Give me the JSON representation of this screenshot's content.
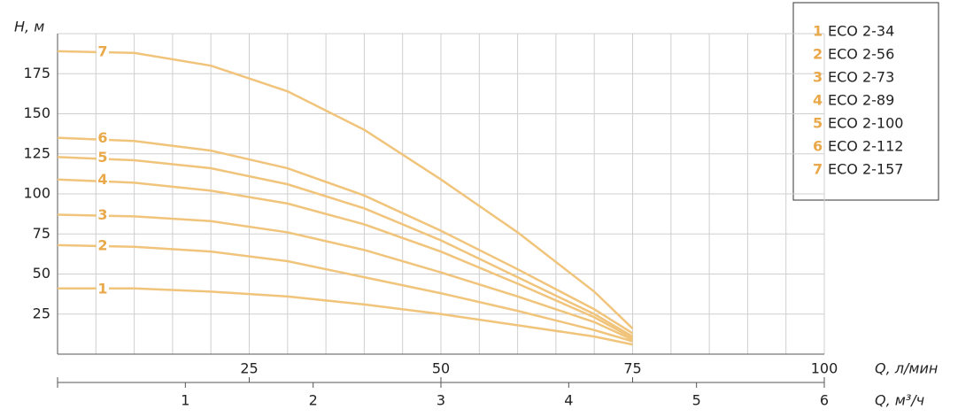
{
  "chart_data": {
    "type": "line",
    "y_label": "H, м",
    "x_label": "Q, л/мин",
    "x2_label": "Q, м³/ч",
    "x": [
      0,
      10,
      20,
      30,
      40,
      50,
      60,
      70,
      75
    ],
    "xlim": [
      0,
      100
    ],
    "xticks": [
      25,
      50,
      75,
      100
    ],
    "xgrid": [
      5,
      10,
      15,
      20,
      25,
      30,
      35,
      40,
      45,
      50,
      55,
      60,
      65,
      70,
      75,
      80,
      85,
      90,
      95,
      100
    ],
    "x2lim": [
      0,
      6
    ],
    "x2ticks": [
      1,
      2,
      3,
      4,
      5,
      6
    ],
    "ylim": [
      0,
      200
    ],
    "yticks": [
      25,
      50,
      75,
      100,
      125,
      150,
      175
    ],
    "grid": true,
    "legend": "top-right",
    "label_color": "#e9a94b",
    "series": [
      {
        "label": "1",
        "name": "ECO 2-34",
        "color": "#f1c47c",
        "values": [
          41,
          41,
          39,
          36,
          31,
          25,
          18,
          11,
          6
        ]
      },
      {
        "label": "2",
        "name": "ECO 2-56",
        "color": "#f1c47c",
        "values": [
          68,
          67,
          64,
          58,
          48,
          38,
          27,
          15,
          8
        ]
      },
      {
        "label": "3",
        "name": "ECO 2-73",
        "color": "#f1c47c",
        "values": [
          87,
          86,
          83,
          76,
          65,
          51,
          36,
          20,
          9
        ]
      },
      {
        "label": "4",
        "name": "ECO 2-89",
        "color": "#f1c47c",
        "values": [
          109,
          107,
          102,
          94,
          81,
          64,
          44,
          23,
          10
        ]
      },
      {
        "label": "5",
        "name": "ECO 2-100",
        "color": "#f1c47c",
        "values": [
          123,
          121,
          116,
          106,
          91,
          71,
          48,
          25,
          11
        ]
      },
      {
        "label": "6",
        "name": "ECO 2-112",
        "color": "#f1c47c",
        "values": [
          135,
          133,
          127,
          116,
          99,
          77,
          53,
          28,
          13
        ]
      },
      {
        "label": "7",
        "name": "ECO 2-157",
        "color": "#f1c47c",
        "values": [
          189,
          188,
          180,
          164,
          140,
          109,
          76,
          39,
          16
        ]
      }
    ]
  }
}
